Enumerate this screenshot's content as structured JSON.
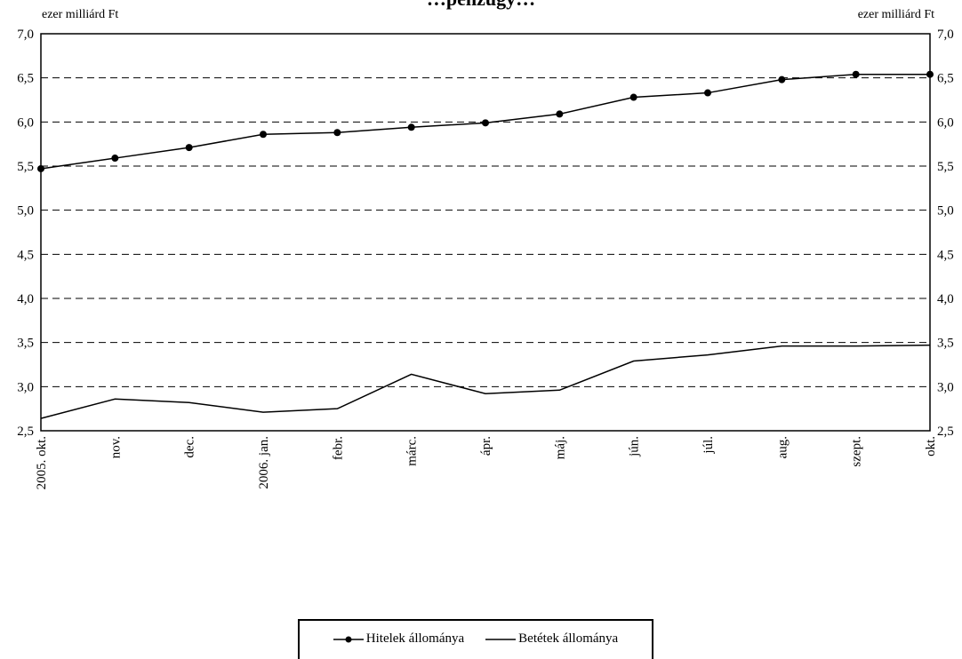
{
  "chart_data": {
    "type": "line",
    "title": "…pénzügy…",
    "y_unit_left": "ezer milliárd Ft",
    "y_unit_right": "ezer milliárd Ft",
    "ylim": [
      2.5,
      7.0
    ],
    "yticks": [
      "2,5",
      "3,0",
      "3,5",
      "4,0",
      "4,5",
      "5,0",
      "5,5",
      "6,0",
      "6,5",
      "7,0"
    ],
    "categories": [
      "2005. okt.",
      "nov.",
      "dec.",
      "2006. jan.",
      "febr.",
      "márc.",
      "ápr.",
      "máj.",
      "jún.",
      "júl.",
      "aug.",
      "szept.",
      "okt."
    ],
    "grid": true,
    "legend_position": "bottom",
    "series": [
      {
        "name": "Hitelek állománya",
        "marker": "circle",
        "color": "#000000",
        "values": [
          5.47,
          5.59,
          5.71,
          5.86,
          5.88,
          5.94,
          5.99,
          6.09,
          6.28,
          6.33,
          6.48,
          6.54,
          6.54
        ]
      },
      {
        "name": "Betétek állománya",
        "marker": "none",
        "color": "#000000",
        "values": [
          2.64,
          2.86,
          2.82,
          2.71,
          2.75,
          3.14,
          2.92,
          2.96,
          3.29,
          3.36,
          3.46,
          3.46,
          3.47
        ]
      }
    ]
  }
}
